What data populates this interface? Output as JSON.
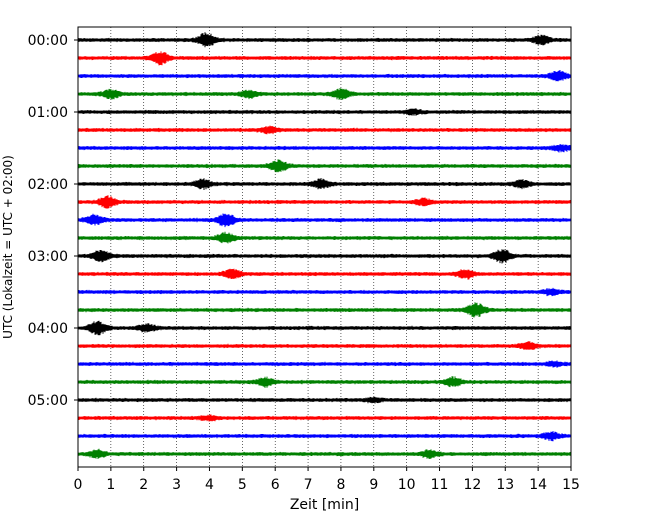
{
  "chart_data": {
    "type": "line",
    "subtype": "helicorder",
    "xlabel": "Zeit  [min]",
    "ylabel": "UTC (Lokalzeit = UTC + 02:00)",
    "xlim": [
      0,
      15
    ],
    "x_ticks": [
      0,
      1,
      2,
      3,
      4,
      5,
      6,
      7,
      8,
      9,
      10,
      11,
      12,
      13,
      14,
      15
    ],
    "x_tick_labels": [
      "0",
      "1",
      "2",
      "3",
      "4",
      "5",
      "6",
      "7",
      "8",
      "9",
      "10",
      "11",
      "12",
      "13",
      "14",
      "15"
    ],
    "x_grid": "dotted vertical lines at each minute",
    "y_tick_labels": [
      "00:00",
      "01:00",
      "02:00",
      "03:00",
      "04:00",
      "05:00"
    ],
    "y_tick_hours": [
      0,
      1,
      2,
      3,
      4,
      5
    ],
    "minutes_per_trace": 15,
    "trace_colors": [
      "#000000",
      "#ff0000",
      "#0000ff",
      "#008000"
    ],
    "traces": [
      {
        "start": "00:00",
        "color": "#000000",
        "bursts": [
          {
            "at": 3.9,
            "amp": 1.0
          },
          {
            "at": 14.1,
            "amp": 0.6
          }
        ]
      },
      {
        "start": "00:15",
        "color": "#ff0000",
        "bursts": [
          {
            "at": 2.5,
            "amp": 0.9
          }
        ]
      },
      {
        "start": "00:30",
        "color": "#0000ff",
        "bursts": [
          {
            "at": 14.6,
            "amp": 0.7
          }
        ]
      },
      {
        "start": "00:45",
        "color": "#008000",
        "bursts": [
          {
            "at": 1.0,
            "amp": 0.6
          },
          {
            "at": 5.2,
            "amp": 0.5
          },
          {
            "at": 8.0,
            "amp": 0.7
          }
        ]
      },
      {
        "start": "01:00",
        "color": "#000000",
        "bursts": [
          {
            "at": 10.2,
            "amp": 0.3
          }
        ]
      },
      {
        "start": "01:15",
        "color": "#ff0000",
        "bursts": [
          {
            "at": 5.8,
            "amp": 0.4
          }
        ]
      },
      {
        "start": "01:30",
        "color": "#0000ff",
        "bursts": [
          {
            "at": 14.7,
            "amp": 0.4
          }
        ]
      },
      {
        "start": "01:45",
        "color": "#008000",
        "bursts": [
          {
            "at": 6.1,
            "amp": 0.8
          }
        ]
      },
      {
        "start": "02:00",
        "color": "#000000",
        "bursts": [
          {
            "at": 3.8,
            "amp": 0.6
          },
          {
            "at": 7.4,
            "amp": 0.6
          },
          {
            "at": 13.5,
            "amp": 0.5
          }
        ]
      },
      {
        "start": "02:15",
        "color": "#ff0000",
        "bursts": [
          {
            "at": 0.9,
            "amp": 0.8
          },
          {
            "at": 10.5,
            "amp": 0.4
          }
        ]
      },
      {
        "start": "02:30",
        "color": "#0000ff",
        "bursts": [
          {
            "at": 0.5,
            "amp": 0.7
          },
          {
            "at": 4.5,
            "amp": 0.9
          }
        ]
      },
      {
        "start": "02:45",
        "color": "#008000",
        "bursts": [
          {
            "at": 4.5,
            "amp": 0.7
          }
        ]
      },
      {
        "start": "03:00",
        "color": "#000000",
        "bursts": [
          {
            "at": 0.7,
            "amp": 0.8
          },
          {
            "at": 12.9,
            "amp": 0.9
          }
        ]
      },
      {
        "start": "03:15",
        "color": "#ff0000",
        "bursts": [
          {
            "at": 4.7,
            "amp": 0.6
          },
          {
            "at": 11.8,
            "amp": 0.6
          }
        ]
      },
      {
        "start": "03:30",
        "color": "#0000ff",
        "bursts": [
          {
            "at": 14.4,
            "amp": 0.4
          }
        ]
      },
      {
        "start": "03:45",
        "color": "#008000",
        "bursts": [
          {
            "at": 12.1,
            "amp": 1.0
          }
        ]
      },
      {
        "start": "04:00",
        "color": "#000000",
        "bursts": [
          {
            "at": 0.6,
            "amp": 0.9
          },
          {
            "at": 2.1,
            "amp": 0.5
          }
        ]
      },
      {
        "start": "04:15",
        "color": "#ff0000",
        "bursts": [
          {
            "at": 13.7,
            "amp": 0.5
          }
        ]
      },
      {
        "start": "04:30",
        "color": "#0000ff",
        "bursts": [
          {
            "at": 14.5,
            "amp": 0.3
          }
        ]
      },
      {
        "start": "04:45",
        "color": "#008000",
        "bursts": [
          {
            "at": 5.7,
            "amp": 0.6
          },
          {
            "at": 11.4,
            "amp": 0.6
          }
        ]
      },
      {
        "start": "05:00",
        "color": "#000000",
        "bursts": [
          {
            "at": 9.0,
            "amp": 0.3
          }
        ]
      },
      {
        "start": "05:15",
        "color": "#ff0000",
        "bursts": [
          {
            "at": 4.0,
            "amp": 0.3
          }
        ]
      },
      {
        "start": "05:30",
        "color": "#0000ff",
        "bursts": [
          {
            "at": 14.4,
            "amp": 0.5
          }
        ]
      },
      {
        "start": "05:45",
        "color": "#008000",
        "bursts": [
          {
            "at": 0.6,
            "amp": 0.5
          },
          {
            "at": 10.7,
            "amp": 0.5
          }
        ]
      }
    ]
  }
}
